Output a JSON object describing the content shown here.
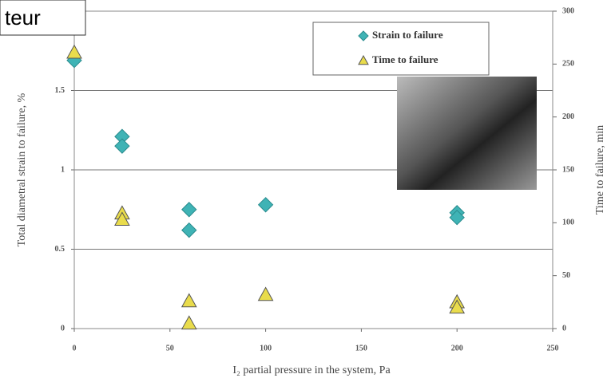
{
  "overlay_text": "teur",
  "chart_data": {
    "type": "scatter",
    "xlabel": "I₂ partial pressure in the system, Pa",
    "ylabel": "Total diametral strain to failure, %",
    "y2label": "Time to failure, min",
    "xlim": [
      0,
      250
    ],
    "xticks": [
      0,
      50,
      100,
      150,
      200,
      250
    ],
    "ylim": [
      0,
      2
    ],
    "yticks": [
      0,
      0.5,
      1,
      1.5
    ],
    "y2lim": [
      0,
      300
    ],
    "y2ticks": [
      0,
      50,
      100,
      150,
      200,
      250,
      300
    ],
    "grid": true,
    "series": [
      {
        "name": "Strain to failure",
        "color": "#3fb3b5",
        "marker": "diamond",
        "x": [
          0,
          25,
          25,
          60,
          60,
          100,
          200,
          200
        ],
        "values": [
          1.69,
          1.21,
          1.15,
          0.75,
          0.62,
          0.78,
          0.73,
          0.7
        ]
      },
      {
        "name": "Time to failure",
        "color": "#e9dc4c",
        "marker": "triangle",
        "axis": "y2",
        "x": [
          0,
          25,
          25,
          60,
          60,
          100,
          200,
          200
        ],
        "values": [
          261,
          109,
          103,
          26,
          5,
          32,
          25,
          20
        ]
      }
    ]
  }
}
